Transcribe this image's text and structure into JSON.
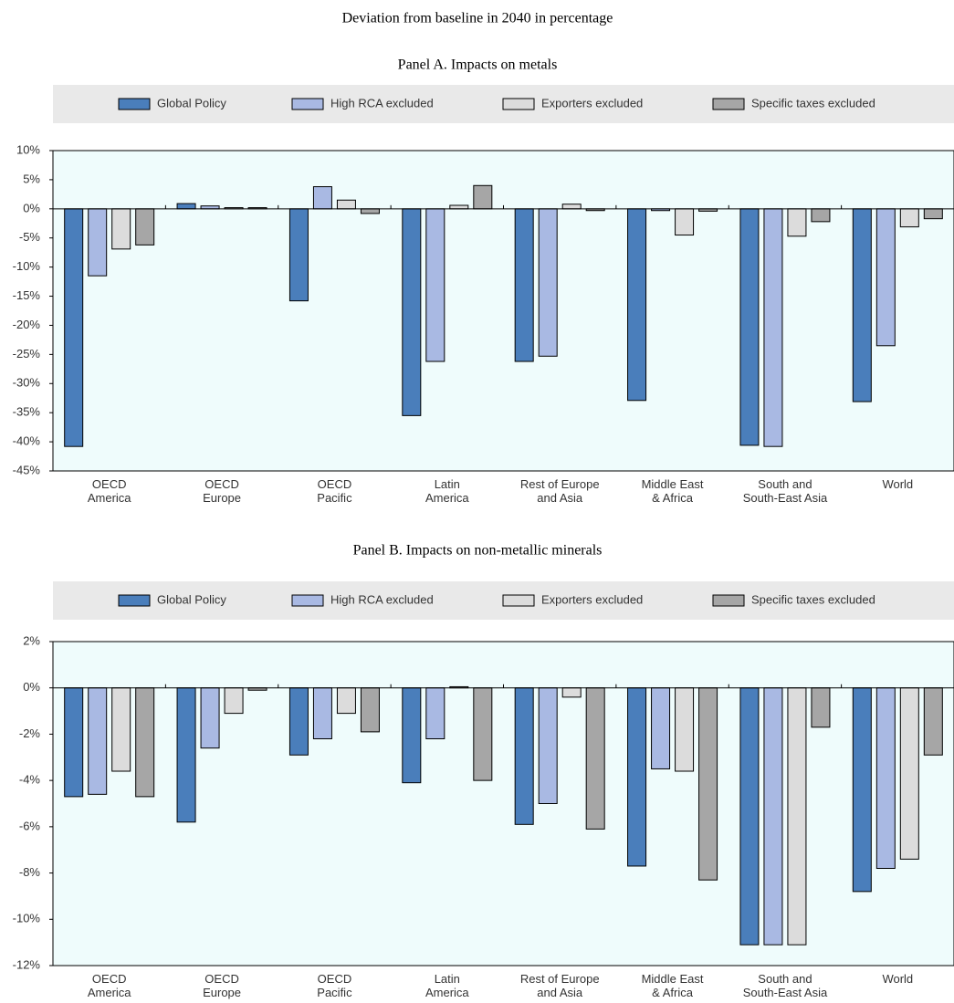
{
  "title": "Deviation from baseline in 2040 in percentage",
  "chart_data": [
    {
      "type": "bar",
      "title": "Panel A. Impacts on metals",
      "categories": [
        "OECD\nAmerica",
        "OECD\nEurope",
        "OECD\nPacific",
        "Latin\nAmerica",
        "Rest of Europe\nand Asia",
        "Middle East\n& Africa",
        "South and\nSouth-East Asia",
        "World"
      ],
      "series": [
        {
          "name": "Global Policy",
          "color": "#4a7ebb",
          "values": [
            -40.8,
            0.9,
            -15.8,
            -35.5,
            -26.2,
            -32.9,
            -40.6,
            -33.1
          ]
        },
        {
          "name": "High RCA excluded",
          "color": "#a9b9e3",
          "values": [
            -11.5,
            0.5,
            3.8,
            -26.2,
            -25.3,
            -0.3,
            -40.8,
            -23.5
          ]
        },
        {
          "name": "Exporters excluded",
          "color": "#dcdcdc",
          "values": [
            -6.9,
            0.2,
            1.5,
            0.6,
            0.8,
            -4.5,
            -4.7,
            -3.1
          ]
        },
        {
          "name": "Specific taxes excluded",
          "color": "#a6a6a6",
          "values": [
            -6.2,
            0.2,
            -0.8,
            4.0,
            -0.3,
            -0.4,
            -2.2,
            -1.7
          ]
        }
      ],
      "ylim": [
        -45,
        10
      ],
      "yticks": [
        {
          "value": -45,
          "label": "-45%"
        },
        {
          "value": -40,
          "label": "-40%"
        },
        {
          "value": -35,
          "label": "-35%"
        },
        {
          "value": -30,
          "label": "-30%"
        },
        {
          "value": -25,
          "label": "-25%"
        },
        {
          "value": -20,
          "label": "-20%"
        },
        {
          "value": -15,
          "label": "-15%"
        },
        {
          "value": -10,
          "label": "-10%"
        },
        {
          "value": -5,
          "label": "-5%"
        },
        {
          "value": 0,
          "label": "0%"
        },
        {
          "value": 5,
          "label": "5%"
        },
        {
          "value": 10,
          "label": "10%"
        }
      ],
      "grid": false,
      "legend": "top"
    },
    {
      "type": "bar",
      "title": "Panel B. Impacts on non-metallic minerals",
      "categories": [
        "OECD\nAmerica",
        "OECD\nEurope",
        "OECD\nPacific",
        "Latin\nAmerica",
        "Rest of Europe\nand Asia",
        "Middle East\n& Africa",
        "South and\nSouth-East Asia",
        "World"
      ],
      "series": [
        {
          "name": "Global Policy",
          "color": "#4a7ebb",
          "values": [
            -4.7,
            -5.8,
            -2.9,
            -4.1,
            -5.9,
            -7.7,
            -11.1,
            -8.8
          ]
        },
        {
          "name": "High RCA excluded",
          "color": "#a9b9e3",
          "values": [
            -4.6,
            -2.6,
            -2.2,
            -2.2,
            -5.0,
            -3.5,
            -11.1,
            -7.8
          ]
        },
        {
          "name": "Exporters excluded",
          "color": "#dcdcdc",
          "values": [
            -3.6,
            -1.1,
            -1.1,
            0.05,
            -0.4,
            -3.6,
            -11.1,
            -7.4
          ]
        },
        {
          "name": "Specific taxes excluded",
          "color": "#a6a6a6",
          "values": [
            -4.7,
            -0.1,
            -1.9,
            -4.0,
            -6.1,
            -8.3,
            -1.7,
            -2.9
          ]
        }
      ],
      "ylim": [
        -12,
        2
      ],
      "yticks": [
        {
          "value": -12,
          "label": "-12%"
        },
        {
          "value": -10,
          "label": "-10%"
        },
        {
          "value": -8,
          "label": "-8%"
        },
        {
          "value": -6,
          "label": "-6%"
        },
        {
          "value": -4,
          "label": "-4%"
        },
        {
          "value": -2,
          "label": "-2%"
        },
        {
          "value": 0,
          "label": "0%"
        },
        {
          "value": 2,
          "label": "2%"
        }
      ],
      "grid": false,
      "legend": "top"
    }
  ]
}
